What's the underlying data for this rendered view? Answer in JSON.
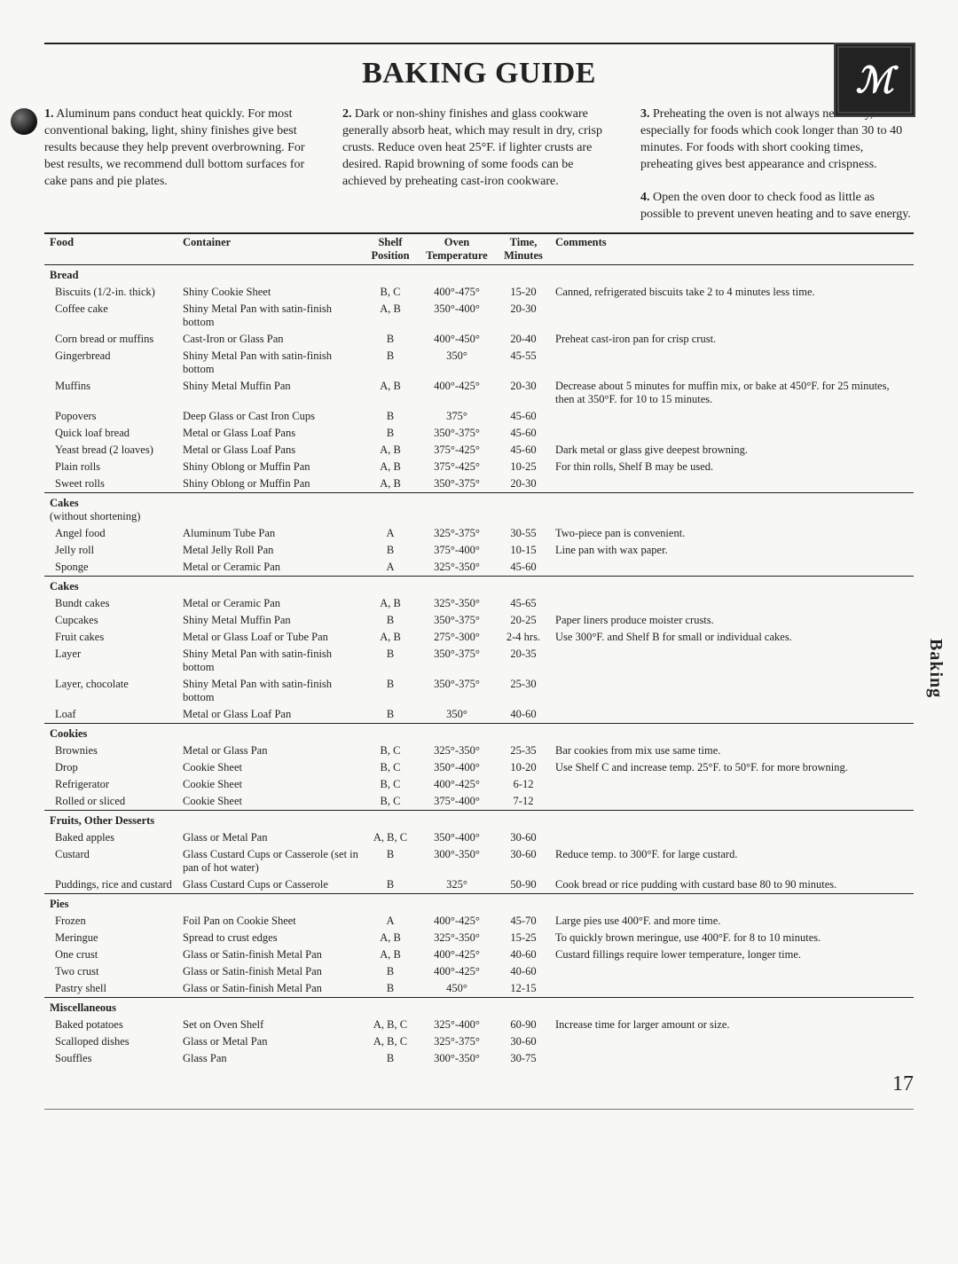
{
  "title": "BAKING GUIDE",
  "sideTab": "Baking",
  "pageNumber": "17",
  "tips": [
    {
      "n": "1.",
      "text": "Aluminum pans conduct heat quickly. For most conventional baking, light, shiny finishes give best results because they help prevent overbrowning. For best results, we recommend dull bottom surfaces for cake pans and pie plates."
    },
    {
      "n": "2.",
      "text": "Dark or non-shiny finishes and glass cookware generally absorb heat, which may result in dry, crisp crusts. Reduce oven heat 25°F. if lighter crusts are desired. Rapid browning of some foods can be achieved by preheating cast-iron cookware."
    },
    {
      "n": "3.",
      "text": "Preheating the oven is not always necessary, especially for foods which cook longer than 30 to 40 minutes. For foods with short cooking times, preheating gives best appearance and crispness."
    },
    {
      "n": "4.",
      "text": "Open the oven door to check food as little as possible to prevent uneven heating and to save energy."
    }
  ],
  "headers": {
    "food": "Food",
    "container": "Container",
    "shelf": "Shelf Position",
    "temp": "Oven Temperature",
    "time": "Time, Minutes",
    "comments": "Comments"
  },
  "sections": [
    {
      "cat": "Bread",
      "rows": [
        {
          "food": "Biscuits (1/2-in. thick)",
          "container": "Shiny Cookie Sheet",
          "shelf": "B, C",
          "temp": "400°-475°",
          "time": "15-20",
          "comments": "Canned, refrigerated biscuits take 2 to 4 minutes less time."
        },
        {
          "food": "Coffee cake",
          "container": "Shiny Metal Pan with satin-finish bottom",
          "shelf": "A, B",
          "temp": "350°-400°",
          "time": "20-30",
          "comments": ""
        },
        {
          "food": "Corn bread or muffins",
          "container": "Cast-Iron or Glass Pan",
          "shelf": "B",
          "temp": "400°-450°",
          "time": "20-40",
          "comments": "Preheat cast-iron pan for crisp crust."
        },
        {
          "food": "Gingerbread",
          "container": "Shiny Metal Pan with satin-finish bottom",
          "shelf": "B",
          "temp": "350°",
          "time": "45-55",
          "comments": ""
        },
        {
          "food": "Muffins",
          "container": "Shiny Metal Muffin Pan",
          "shelf": "A, B",
          "temp": "400°-425°",
          "time": "20-30",
          "comments": "Decrease about 5 minutes for muffin mix, or bake at 450°F. for 25 minutes, then at 350°F. for 10 to 15 minutes."
        },
        {
          "food": "Popovers",
          "container": "Deep Glass or Cast Iron Cups",
          "shelf": "B",
          "temp": "375°",
          "time": "45-60",
          "comments": ""
        },
        {
          "food": "Quick loaf bread",
          "container": "Metal or Glass Loaf Pans",
          "shelf": "B",
          "temp": "350°-375°",
          "time": "45-60",
          "comments": ""
        },
        {
          "food": "Yeast bread (2 loaves)",
          "container": "Metal or Glass Loaf Pans",
          "shelf": "A, B",
          "temp": "375°-425°",
          "time": "45-60",
          "comments": "Dark metal or glass give deepest browning."
        },
        {
          "food": "Plain rolls",
          "container": "Shiny Oblong or Muffin Pan",
          "shelf": "A, B",
          "temp": "375°-425°",
          "time": "10-25",
          "comments": "For thin rolls, Shelf B may be used."
        },
        {
          "food": "Sweet rolls",
          "container": "Shiny Oblong or Muffin Pan",
          "shelf": "A, B",
          "temp": "350°-375°",
          "time": "20-30",
          "comments": ""
        }
      ]
    },
    {
      "cat": "Cakes",
      "sub": "(without shortening)",
      "rows": [
        {
          "food": "Angel food",
          "container": "Aluminum Tube Pan",
          "shelf": "A",
          "temp": "325°-375°",
          "time": "30-55",
          "comments": "Two-piece pan is convenient."
        },
        {
          "food": "Jelly roll",
          "container": "Metal Jelly Roll Pan",
          "shelf": "B",
          "temp": "375°-400°",
          "time": "10-15",
          "comments": "Line pan with wax paper."
        },
        {
          "food": "Sponge",
          "container": "Metal or Ceramic Pan",
          "shelf": "A",
          "temp": "325°-350°",
          "time": "45-60",
          "comments": ""
        }
      ]
    },
    {
      "cat": "Cakes",
      "rows": [
        {
          "food": "Bundt cakes",
          "container": "Metal or Ceramic Pan",
          "shelf": "A, B",
          "temp": "325°-350°",
          "time": "45-65",
          "comments": ""
        },
        {
          "food": "Cupcakes",
          "container": "Shiny Metal Muffin Pan",
          "shelf": "B",
          "temp": "350°-375°",
          "time": "20-25",
          "comments": "Paper liners produce moister crusts."
        },
        {
          "food": "Fruit cakes",
          "container": "Metal or Glass Loaf or Tube Pan",
          "shelf": "A, B",
          "temp": "275°-300°",
          "time": "2-4 hrs.",
          "comments": "Use 300°F. and Shelf B for small or individual cakes."
        },
        {
          "food": "Layer",
          "container": "Shiny Metal Pan with satin-finish bottom",
          "shelf": "B",
          "temp": "350°-375°",
          "time": "20-35",
          "comments": ""
        },
        {
          "food": "Layer, chocolate",
          "container": "Shiny Metal Pan with satin-finish bottom",
          "shelf": "B",
          "temp": "350°-375°",
          "time": "25-30",
          "comments": ""
        },
        {
          "food": "Loaf",
          "container": "Metal or Glass Loaf Pan",
          "shelf": "B",
          "temp": "350°",
          "time": "40-60",
          "comments": ""
        }
      ]
    },
    {
      "cat": "Cookies",
      "rows": [
        {
          "food": "Brownies",
          "container": "Metal or Glass Pan",
          "shelf": "B, C",
          "temp": "325°-350°",
          "time": "25-35",
          "comments": "Bar cookies from mix use same time."
        },
        {
          "food": "Drop",
          "container": "Cookie Sheet",
          "shelf": "B, C",
          "temp": "350°-400°",
          "time": "10-20",
          "comments": "Use Shelf C and increase temp. 25°F. to 50°F. for more browning."
        },
        {
          "food": "Refrigerator",
          "container": "Cookie Sheet",
          "shelf": "B, C",
          "temp": "400°-425°",
          "time": "6-12",
          "comments": ""
        },
        {
          "food": "Rolled or sliced",
          "container": "Cookie Sheet",
          "shelf": "B, C",
          "temp": "375°-400°",
          "time": "7-12",
          "comments": ""
        }
      ]
    },
    {
      "cat": "Fruits, Other Desserts",
      "rows": [
        {
          "food": "Baked apples",
          "container": "Glass or Metal Pan",
          "shelf": "A, B, C",
          "temp": "350°-400°",
          "time": "30-60",
          "comments": ""
        },
        {
          "food": "Custard",
          "container": "Glass Custard Cups or Casserole (set in pan of hot water)",
          "shelf": "B",
          "temp": "300°-350°",
          "time": "30-60",
          "comments": "Reduce temp. to 300°F. for large custard."
        },
        {
          "food": "Puddings, rice and custard",
          "container": "Glass Custard Cups or Casserole",
          "shelf": "B",
          "temp": "325°",
          "time": "50-90",
          "comments": "Cook bread or rice pudding with custard base 80 to 90 minutes."
        }
      ]
    },
    {
      "cat": "Pies",
      "rows": [
        {
          "food": "Frozen",
          "container": "Foil Pan on Cookie Sheet",
          "shelf": "A",
          "temp": "400°-425°",
          "time": "45-70",
          "comments": "Large pies use 400°F. and more time."
        },
        {
          "food": "Meringue",
          "container": "Spread to crust edges",
          "shelf": "A, B",
          "temp": "325°-350°",
          "time": "15-25",
          "comments": "To quickly brown meringue, use 400°F. for 8 to 10 minutes."
        },
        {
          "food": "One crust",
          "container": "Glass or Satin-finish Metal Pan",
          "shelf": "A, B",
          "temp": "400°-425°",
          "time": "40-60",
          "comments": "Custard fillings require lower temperature, longer time."
        },
        {
          "food": "Two crust",
          "container": "Glass or Satin-finish Metal Pan",
          "shelf": "B",
          "temp": "400°-425°",
          "time": "40-60",
          "comments": ""
        },
        {
          "food": "Pastry shell",
          "container": "Glass or Satin-finish Metal Pan",
          "shelf": "B",
          "temp": "450°",
          "time": "12-15",
          "comments": ""
        }
      ]
    },
    {
      "cat": "Miscellaneous",
      "rows": [
        {
          "food": "Baked potatoes",
          "container": "Set on Oven Shelf",
          "shelf": "A, B, C",
          "temp": "325°-400°",
          "time": "60-90",
          "comments": "Increase time for larger amount or size."
        },
        {
          "food": "Scalloped dishes",
          "container": "Glass or Metal Pan",
          "shelf": "A, B, C",
          "temp": "325°-375°",
          "time": "30-60",
          "comments": ""
        },
        {
          "food": "Souffles",
          "container": "Glass Pan",
          "shelf": "B",
          "temp": "300°-350°",
          "time": "30-75",
          "comments": ""
        }
      ]
    }
  ]
}
